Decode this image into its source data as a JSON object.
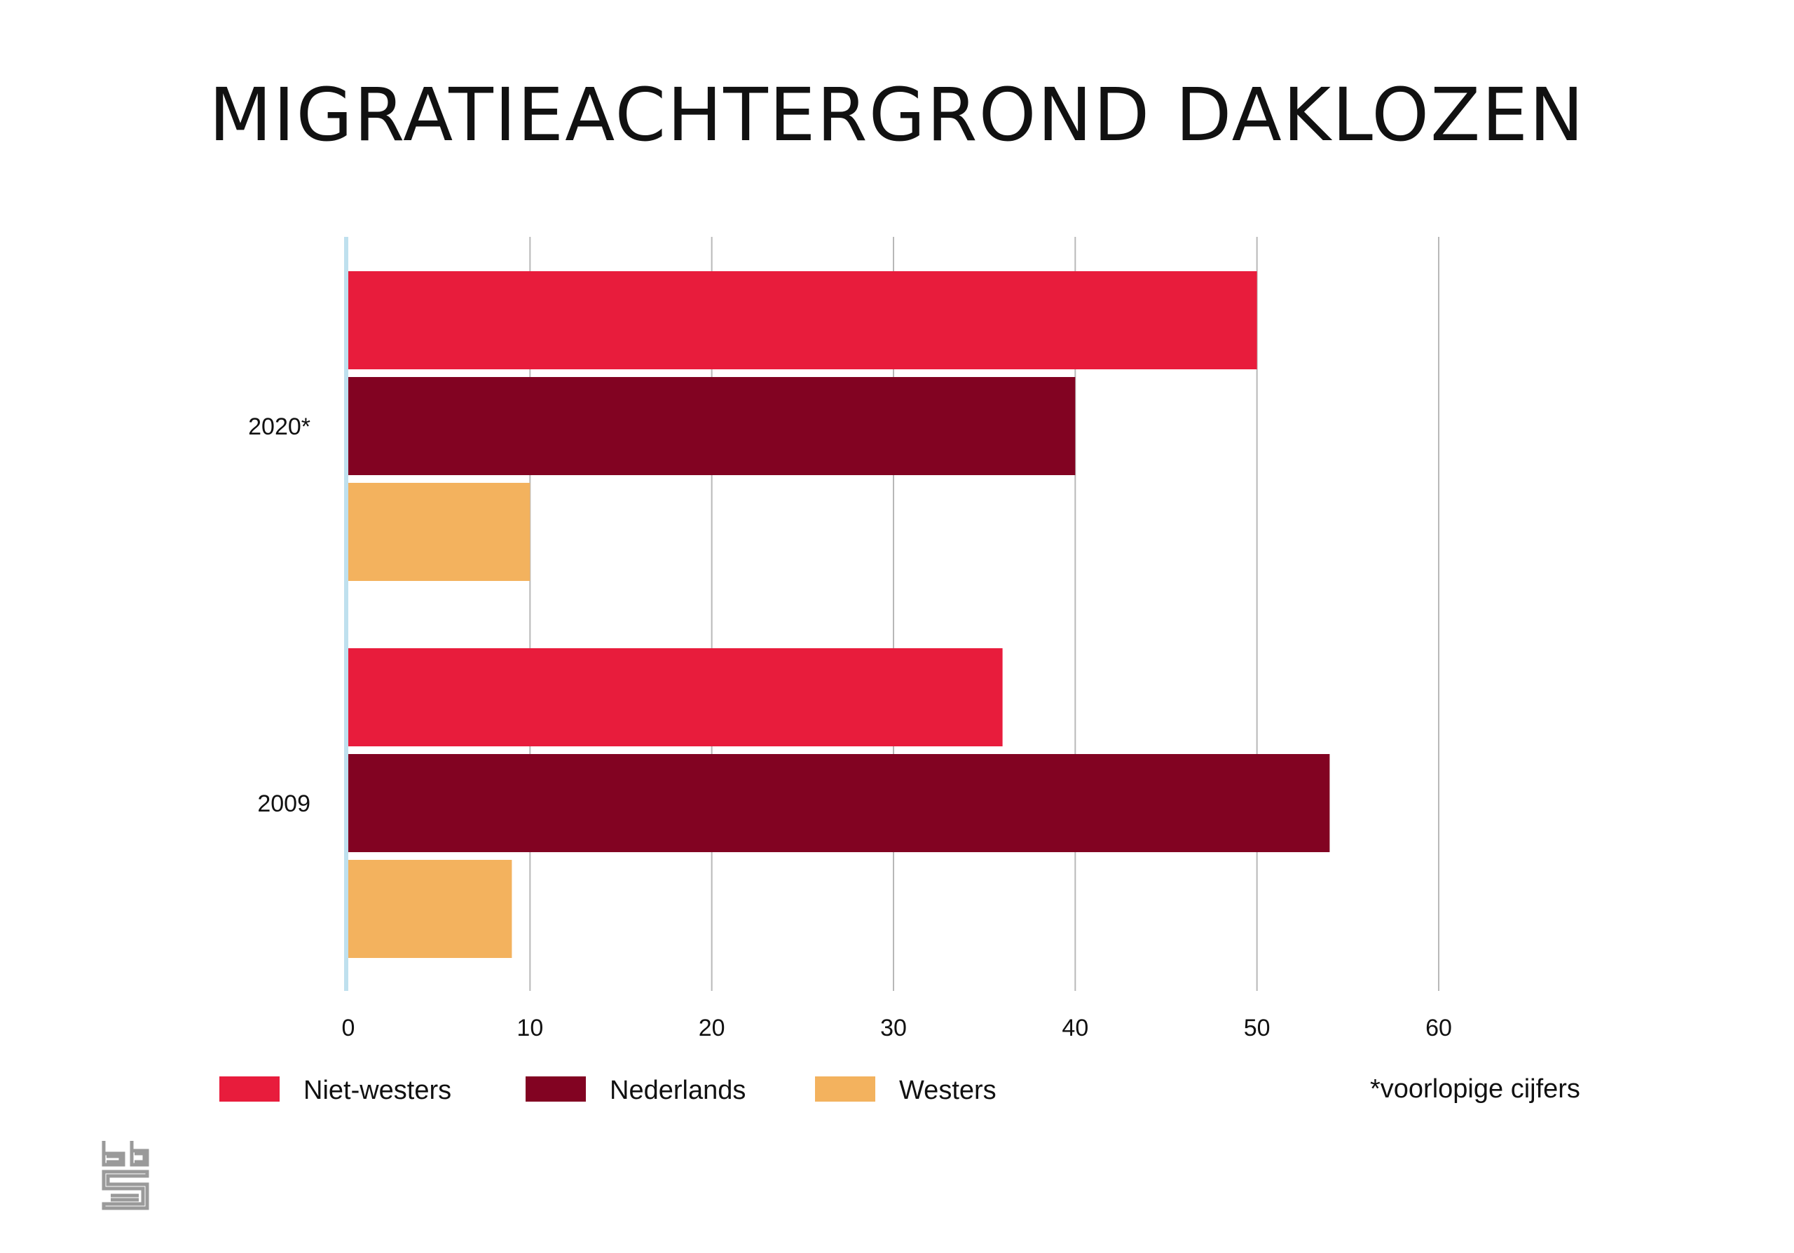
{
  "chart_data": {
    "type": "bar",
    "orientation": "horizontal",
    "title": "MIGRATIEACHTERGROND DAKLOZEN",
    "categories": [
      "2020*",
      "2009"
    ],
    "series": [
      {
        "name": "Niet-westers",
        "values": [
          50,
          36
        ],
        "color": "#E81C3C"
      },
      {
        "name": "Nederlands",
        "values": [
          40,
          54
        ],
        "color": "#820322"
      },
      {
        "name": "Westers",
        "values": [
          10,
          9
        ],
        "color": "#F3B25E"
      }
    ],
    "xlim": [
      0,
      60
    ],
    "xticks": [
      "0",
      "10",
      "20",
      "30",
      "40",
      "50",
      "60"
    ],
    "grid": true,
    "legend_position": "bottom",
    "note": "*voorlopige cijfers"
  }
}
